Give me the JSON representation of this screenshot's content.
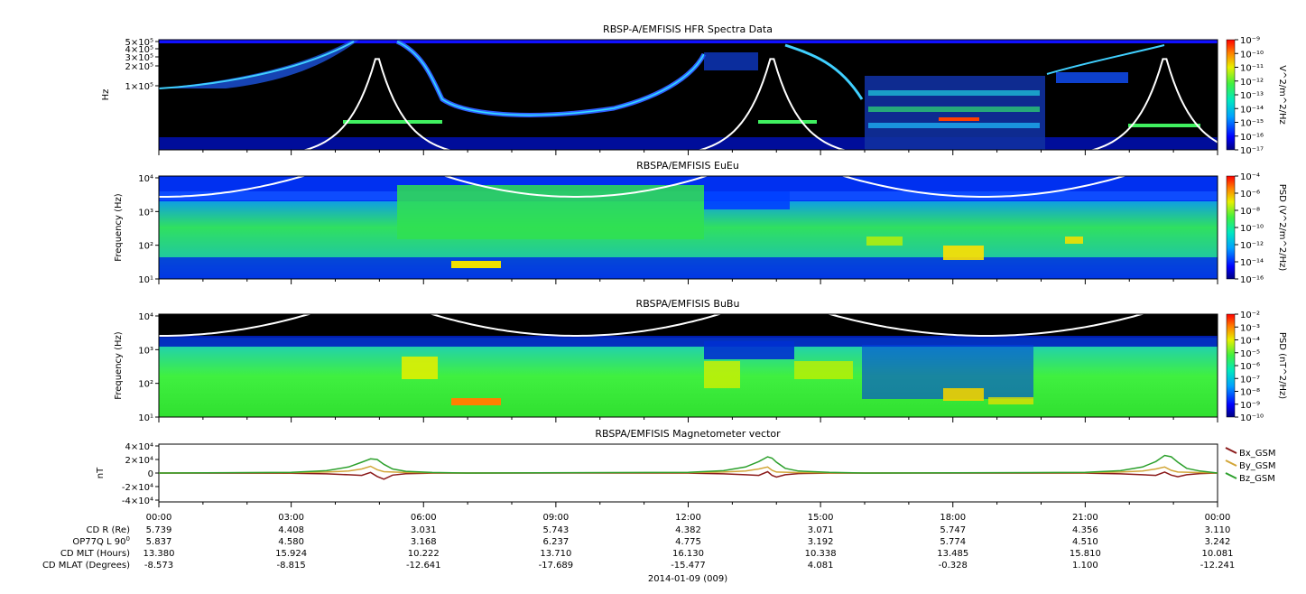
{
  "chart_data": [
    {
      "type": "heatmap",
      "title": "RBSP-A/EMFISIS  HFR Spectra Data",
      "ylabel": "Hz",
      "y_scale": "log",
      "yticks": [
        "5×10⁵",
        "4×10⁵",
        "3×10⁵",
        "2×10⁵",
        "1×10⁵"
      ],
      "colorbar_label": "V^2/m^2/Hz",
      "colorbar_ticks": [
        "10⁻⁹",
        "10⁻¹⁰",
        "10⁻¹¹",
        "10⁻¹²",
        "10⁻¹³",
        "10⁻¹⁴",
        "10⁻¹⁵",
        "10⁻¹⁶",
        "10⁻¹⁷"
      ]
    },
    {
      "type": "heatmap",
      "title": "RBSPA/EMFISIS  EuEu",
      "ylabel": "Frequency (Hz)",
      "y_scale": "log",
      "yticks": [
        "10⁴",
        "10³",
        "10²",
        "10¹"
      ],
      "colorbar_label": "PSD (V^2/m^2/Hz)",
      "colorbar_ticks": [
        "10⁻⁴",
        "10⁻⁶",
        "10⁻⁸",
        "10⁻¹⁰",
        "10⁻¹²",
        "10⁻¹⁴",
        "10⁻¹⁶"
      ]
    },
    {
      "type": "heatmap",
      "title": "RBSPA/EMFISIS  BuBu",
      "ylabel": "Frequency (Hz)",
      "y_scale": "log",
      "yticks": [
        "10⁴",
        "10³",
        "10²",
        "10¹"
      ],
      "colorbar_label": "PSD (nT^2/Hz)",
      "colorbar_ticks": [
        "10⁻²",
        "10⁻³",
        "10⁻⁴",
        "10⁻⁵",
        "10⁻⁶",
        "10⁻⁷",
        "10⁻⁸",
        "10⁻⁹",
        "10⁻¹⁰"
      ]
    },
    {
      "type": "line",
      "title": "RBSPA/EMFISIS  Magnetometer vector",
      "ylabel": "nT",
      "ylim": [
        -40000,
        40000
      ],
      "yticks": [
        "4×10⁴",
        "2×10⁴",
        "0",
        "-2×10⁴",
        "-4×10⁴"
      ],
      "x_hours": [
        0,
        3,
        3.8,
        4.3,
        4.6,
        4.8,
        4.95,
        5.1,
        5.3,
        5.6,
        6.2,
        7,
        12,
        12.8,
        13.3,
        13.6,
        13.8,
        13.9,
        14.0,
        14.2,
        14.5,
        15.2,
        16,
        21,
        21.8,
        22.3,
        22.6,
        22.8,
        22.95,
        23.1,
        23.3,
        23.6,
        24
      ],
      "series": [
        {
          "name": "Bx_GSM",
          "color": "#8b1a1a",
          "values": [
            0,
            -300,
            -1200,
            -2500,
            -3500,
            1000,
            -5000,
            -9000,
            -3000,
            -1000,
            -200,
            0,
            -200,
            -1200,
            -2500,
            -3500,
            2000,
            -3500,
            -6000,
            -2500,
            -800,
            -150,
            0,
            -200,
            -1200,
            -2500,
            -3500,
            1500,
            -3000,
            -5500,
            -2500,
            -800,
            0
          ]
        },
        {
          "name": "By_GSM",
          "color": "#d2a637",
          "values": [
            0,
            500,
            1500,
            3000,
            6000,
            10000,
            5000,
            2000,
            1500,
            800,
            300,
            0,
            500,
            1500,
            3000,
            6000,
            9000,
            4000,
            1500,
            1200,
            600,
            200,
            0,
            500,
            1500,
            3000,
            6000,
            9000,
            4000,
            1500,
            1200,
            600,
            0
          ]
        },
        {
          "name": "Bz_GSM",
          "color": "#2ca02c",
          "values": [
            0,
            1000,
            3500,
            9000,
            16000,
            21000,
            20000,
            13000,
            6000,
            2500,
            800,
            0,
            1000,
            3500,
            9000,
            17000,
            24000,
            22000,
            16000,
            7000,
            3000,
            900,
            0,
            1000,
            3500,
            9000,
            17000,
            26000,
            24000,
            16000,
            7000,
            3000,
            0
          ]
        }
      ]
    }
  ],
  "x_tick_labels": [
    "00:00",
    "03:00",
    "06:00",
    "09:00",
    "12:00",
    "15:00",
    "18:00",
    "21:00",
    "00:00"
  ],
  "ephemeris": {
    "rows": [
      {
        "label": "CD R (Re)",
        "values": [
          "5.739",
          "4.408",
          "3.031",
          "5.743",
          "4.382",
          "3.071",
          "5.747",
          "4.356",
          "3.110"
        ]
      },
      {
        "label": "OP77Q L 90",
        "label_sup": "0",
        "values": [
          "5.837",
          "4.580",
          "3.168",
          "6.237",
          "4.775",
          "3.192",
          "5.774",
          "4.510",
          "3.242"
        ]
      },
      {
        "label": "CD MLT (Hours)",
        "values": [
          "13.380",
          "15.924",
          "10.222",
          "13.710",
          "16.130",
          "10.338",
          "13.485",
          "15.810",
          "10.081"
        ]
      },
      {
        "label": "CD MLAT (Degrees)",
        "values": [
          "-8.573",
          "-8.815",
          "-12.641",
          "-17.689",
          "-15.477",
          "4.081",
          "-0.328",
          "1.100",
          "-12.241"
        ]
      }
    ]
  },
  "date_label": "2014-01-09 (009)"
}
